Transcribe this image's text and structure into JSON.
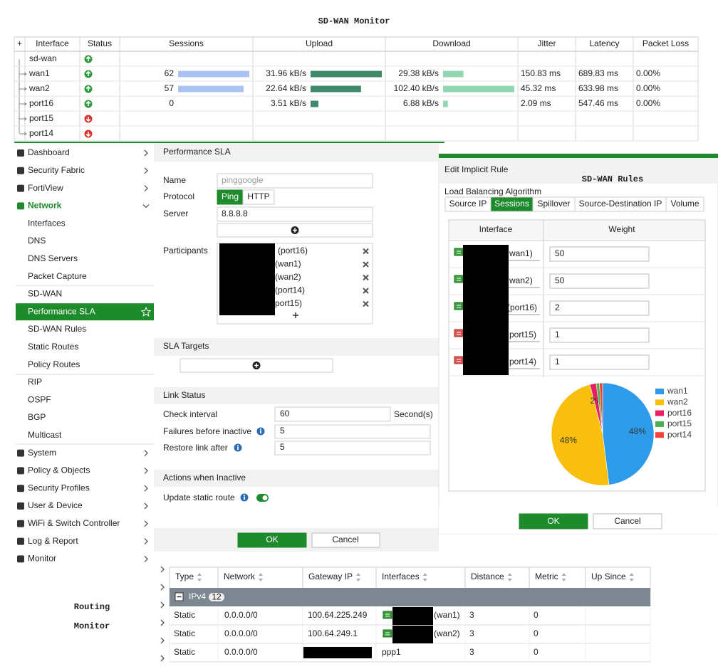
{
  "monitor": {
    "title": "SD-WAN Monitor",
    "columns": [
      "+",
      "Interface",
      "Status",
      "Sessions",
      "Upload",
      "Download",
      "Jitter",
      "Latency",
      "Packet Loss"
    ],
    "rows": [
      {
        "interface": "sd-wan",
        "status": "up"
      },
      {
        "interface": "wan1",
        "status": "up",
        "sessions": 62,
        "upload": {
          "value": 31.96,
          "label": "31.96 kB/s"
        },
        "download": {
          "value": 29.38,
          "label": "29.38 kB/s"
        },
        "jitter": "150.83 ms",
        "latency": "689.83 ms",
        "packet_loss": "0.00%"
      },
      {
        "interface": "wan2",
        "status": "up",
        "sessions": 57,
        "upload": {
          "value": 22.64,
          "label": "22.64 kB/s"
        },
        "download": {
          "value": 102.4,
          "label": "102.40 kB/s"
        },
        "jitter": "45.32 ms",
        "latency": "633.98 ms",
        "packet_loss": "0.00%"
      },
      {
        "interface": "port16",
        "status": "up",
        "sessions": 0,
        "upload": {
          "value": 3.51,
          "label": "3.51 kB/s"
        },
        "download": {
          "value": 6.88,
          "label": "6.88 kB/s"
        },
        "jitter": "2.09 ms",
        "latency": "547.46 ms",
        "packet_loss": "0.00%"
      },
      {
        "interface": "port15",
        "status": "down"
      },
      {
        "interface": "port14",
        "status": "down"
      }
    ]
  },
  "nav": [
    {
      "label": "Dashboard",
      "level": 1
    },
    {
      "label": "Security Fabric",
      "level": 1
    },
    {
      "label": "FortiView",
      "level": 1
    },
    {
      "label": "Network",
      "level": 1,
      "expanded": true
    },
    {
      "label": "Interfaces",
      "level": 2
    },
    {
      "label": "DNS",
      "level": 2
    },
    {
      "label": "DNS Servers",
      "level": 2
    },
    {
      "label": "Packet Capture",
      "level": 2
    },
    {
      "label": "SD-WAN",
      "level": 2
    },
    {
      "label": "Performance SLA",
      "level": 2,
      "active": true
    },
    {
      "label": "SD-WAN Rules",
      "level": 2
    },
    {
      "label": "Static Routes",
      "level": 2
    },
    {
      "label": "Policy Routes",
      "level": 2
    },
    {
      "label": "RIP",
      "level": 2
    },
    {
      "label": "OSPF",
      "level": 2
    },
    {
      "label": "BGP",
      "level": 2
    },
    {
      "label": "Multicast",
      "level": 2
    },
    {
      "label": "System",
      "level": 1
    },
    {
      "label": "Policy & Objects",
      "level": 1
    },
    {
      "label": "Security Profiles",
      "level": 1
    },
    {
      "label": "User & Device",
      "level": 1
    },
    {
      "label": "WiFi & Switch Controller",
      "level": 1
    },
    {
      "label": "Log & Report",
      "level": 1
    },
    {
      "label": "Monitor",
      "level": 1
    }
  ],
  "sla": {
    "title": "Performance SLA",
    "name_label": "Name",
    "name": "pinggoogle",
    "protocol_label": "Protocol",
    "protocols": [
      "Ping",
      "HTTP"
    ],
    "server_label": "Server",
    "server": "8.8.8.8",
    "participants_label": "Participants",
    "participants": [
      "(port16)",
      "(wan1)",
      "(wan2)",
      "(port14)",
      "port15)"
    ],
    "targets_title": "SLA Targets",
    "link_title": "Link Status",
    "check_label": "Check interval",
    "check": 60,
    "check_unit": "Second(s)",
    "failures_label": "Failures before inactive",
    "failures": 5,
    "restore_label": "Restore link after",
    "restore": 5,
    "actions_title": "Actions when Inactive",
    "update_label": "Update static route",
    "update": true,
    "ok": "OK",
    "cancel": "Cancel"
  },
  "rules": {
    "overlay": "SD-WAN Rules",
    "title": "Edit Implicit Rule",
    "algorithm_label": "Load Balancing Algorithm",
    "algorithms": [
      "Source IP",
      "Sessions",
      "Spillover",
      "Source-Destination IP",
      "Volume"
    ],
    "active": 1,
    "columns": [
      "Interface",
      "Weight"
    ],
    "rows": [
      {
        "interface": "wan1)",
        "weight": 50,
        "status": "up"
      },
      {
        "interface": "wan2)",
        "weight": 50,
        "status": "up"
      },
      {
        "interface": "(port16)",
        "weight": 2,
        "status": "up"
      },
      {
        "interface": "port15)",
        "weight": 1,
        "status": "down"
      },
      {
        "interface": "port14)",
        "weight": 1,
        "status": "down"
      }
    ],
    "ok": "OK",
    "cancel": "Cancel"
  },
  "chart_data": {
    "type": "pie",
    "categories": [
      "wan1",
      "wan2",
      "port16",
      "port15",
      "port14"
    ],
    "values": [
      48,
      48,
      2,
      1,
      1
    ],
    "value_labels": [
      "48%",
      "48%",
      "2%",
      null,
      null
    ],
    "colors": [
      "#2e9bea",
      "#f9bf0f",
      "#e91e63",
      "#4caf50",
      "#f44336"
    ],
    "legend": "right"
  },
  "routing": {
    "title": [
      "Routing",
      "Monitor"
    ],
    "columns": [
      "Type",
      "Network",
      "Gateway IP",
      "Interfaces",
      "Distance",
      "Metric",
      "Up Since"
    ],
    "group": {
      "label": "IPv4",
      "count": 12
    },
    "rows": [
      {
        "type": "Static",
        "network": "0.0.0.0/0",
        "gateway": "100.64.225.249",
        "interface": "(wan1)",
        "distance": 3,
        "metric": 0
      },
      {
        "type": "Static",
        "network": "0.0.0.0/0",
        "gateway": "100.64.249.1",
        "interface": "(wan2)",
        "distance": 3,
        "metric": 0
      },
      {
        "type": "Static",
        "network": "0.0.0.0/0",
        "interface": "ppp1",
        "distance": 3,
        "metric": 0
      }
    ]
  }
}
